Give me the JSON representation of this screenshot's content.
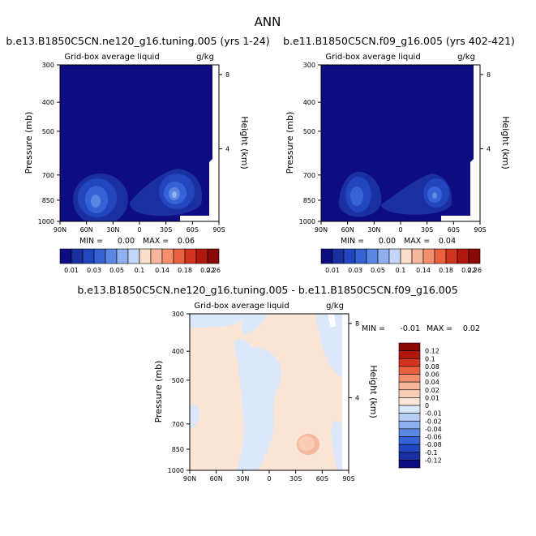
{
  "figure": {
    "title": "ANN"
  },
  "chart_data": [
    {
      "type": "heatmap",
      "title": "b.e13.B1850C5CN.ne120_g16.tuning.005 (yrs 1-24)",
      "subtitle_left": "Grid-box average liquid",
      "subtitle_right": "g/kg",
      "ylabel": "Pressure (mb)",
      "ylabel_right": "Height (km)",
      "x_ticks": [
        "90N",
        "60N",
        "30N",
        "0",
        "30S",
        "60S",
        "90S"
      ],
      "y_ticks": [
        "300",
        "400",
        "500",
        "700",
        "850",
        "1000"
      ],
      "y_right_ticks": [
        "8",
        "4"
      ],
      "ylim": [
        1000,
        300
      ],
      "stats": {
        "min_label": "MIN =",
        "min": "0.00",
        "max_label": "MAX =",
        "max": "0.06"
      },
      "colorbar": {
        "colors": [
          "#0d0c80",
          "#1a2fa0",
          "#2246be",
          "#3563d6",
          "#5a86e4",
          "#8fb0ee",
          "#c3d6f7",
          "#f8dccc",
          "#f7b79e",
          "#f48f6e",
          "#e9613e",
          "#d13420",
          "#b0180e",
          "#8a0a08"
        ],
        "labels": [
          "0.01",
          "0.03",
          "0.05",
          "0.1",
          "0.14",
          "0.18",
          "0.22",
          "0.26"
        ]
      }
    },
    {
      "type": "heatmap",
      "title": "b.e11.B1850C5CN.f09_g16.005 (yrs 402-421)",
      "subtitle_left": "Grid-box average liquid",
      "subtitle_right": "g/kg",
      "ylabel": "Pressure (mb)",
      "ylabel_right": "Height (km)",
      "x_ticks": [
        "90N",
        "60N",
        "30N",
        "0",
        "30S",
        "60S",
        "90S"
      ],
      "y_ticks": [
        "300",
        "400",
        "500",
        "700",
        "850",
        "1000"
      ],
      "y_right_ticks": [
        "8",
        "4"
      ],
      "ylim": [
        1000,
        300
      ],
      "stats": {
        "min_label": "MIN =",
        "min": "0.00",
        "max_label": "MAX =",
        "max": "0.04"
      },
      "colorbar": {
        "colors": [
          "#0d0c80",
          "#1a2fa0",
          "#2246be",
          "#3563d6",
          "#5a86e4",
          "#8fb0ee",
          "#c3d6f7",
          "#f8dccc",
          "#f7b79e",
          "#f48f6e",
          "#e9613e",
          "#d13420",
          "#b0180e",
          "#8a0a08"
        ],
        "labels": [
          "0.01",
          "0.03",
          "0.05",
          "0.1",
          "0.14",
          "0.18",
          "0.22",
          "0.26"
        ]
      }
    },
    {
      "type": "heatmap",
      "title": "b.e13.B1850C5CN.ne120_g16.tuning.005 - b.e11.B1850C5CN.f09_g16.005",
      "subtitle_left": "Grid-box average liquid",
      "subtitle_right": "g/kg",
      "ylabel": "Pressure (mb)",
      "ylabel_right": "Height (km)",
      "x_ticks": [
        "90N",
        "60N",
        "30N",
        "0",
        "30S",
        "60S",
        "90S"
      ],
      "y_ticks": [
        "300",
        "400",
        "500",
        "700",
        "850",
        "1000"
      ],
      "y_right_ticks": [
        "8",
        "4"
      ],
      "ylim": [
        1000,
        300
      ],
      "stats": {
        "min_label": "MIN =",
        "min": "-0.01",
        "max_label": "MAX =",
        "max": "0.02"
      },
      "colorbar": {
        "colors": [
          "#8a0a08",
          "#b0180e",
          "#d13420",
          "#e9613e",
          "#f48f6e",
          "#f7b79e",
          "#f9cdb4",
          "#fbe5d6",
          "#dbe8fb",
          "#b9d0f5",
          "#8fb0ee",
          "#5a86e4",
          "#3563d6",
          "#2246be",
          "#1a2fa0",
          "#0d0c80"
        ],
        "labels": [
          "0.12",
          "0.1",
          "0.08",
          "0.06",
          "0.04",
          "0.02",
          "0.01",
          "0",
          "-0.01",
          "-0.02",
          "-0.04",
          "-0.06",
          "-0.08",
          "-0.1",
          "-0.12"
        ]
      }
    }
  ]
}
